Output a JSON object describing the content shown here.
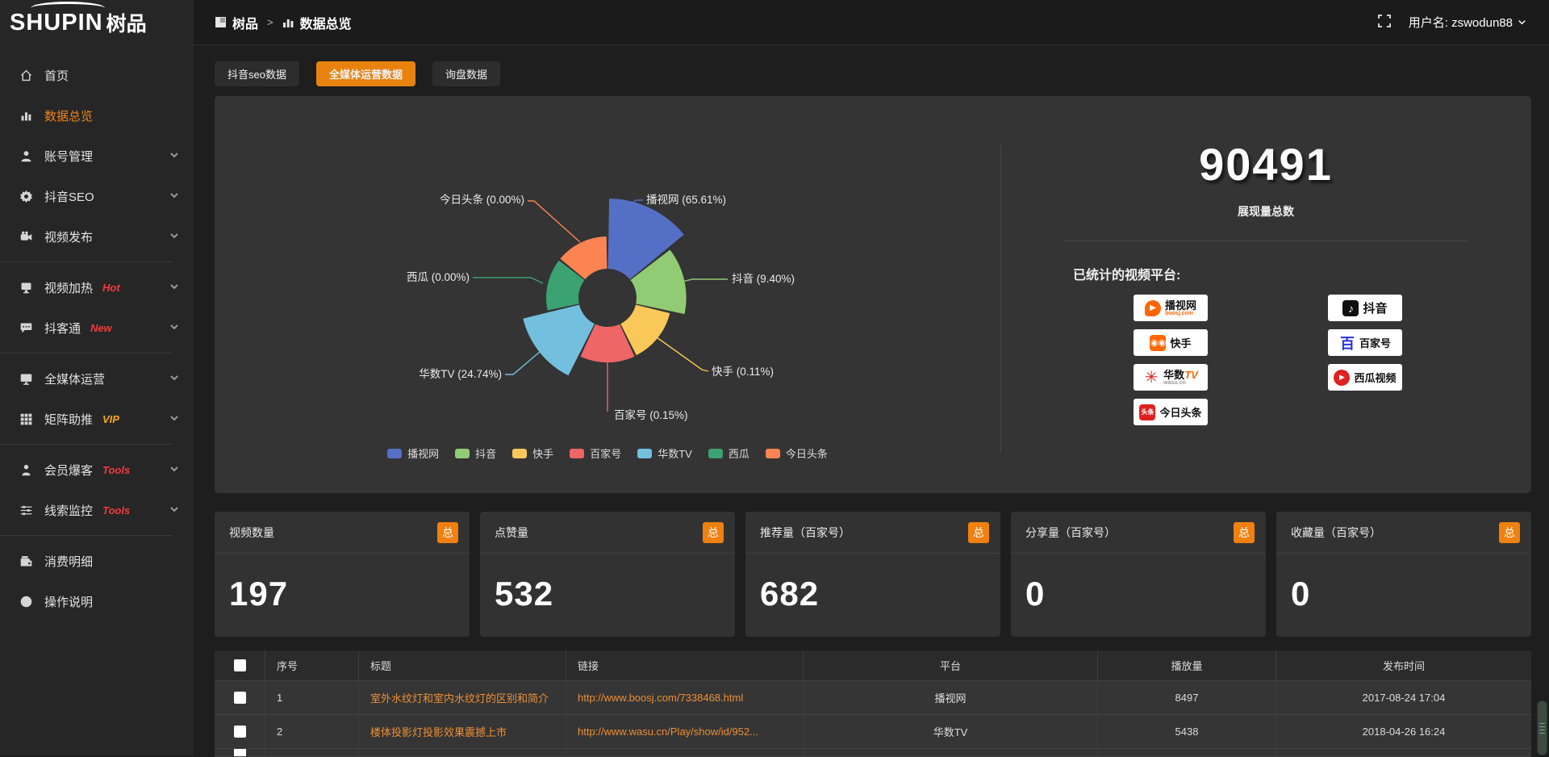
{
  "header": {
    "logo_en": "SHUPIN",
    "logo_cn": "树品",
    "breadcrumb": {
      "root": "树品",
      "sep": ">",
      "current": "数据总览"
    },
    "user_label": "用户名: zswodun88"
  },
  "sidebar": {
    "items": [
      {
        "label": "首页",
        "badge": "",
        "expandable": false
      },
      {
        "label": "数据总览",
        "badge": "",
        "expandable": false,
        "active": true
      },
      {
        "label": "账号管理",
        "badge": "",
        "expandable": true
      },
      {
        "label": "抖音SEO",
        "badge": "",
        "expandable": true
      },
      {
        "label": "视频发布",
        "badge": "",
        "expandable": true
      },
      {
        "label": "视频加热",
        "badge": "Hot",
        "expandable": true
      },
      {
        "label": "抖客通",
        "badge": "New",
        "expandable": true
      },
      {
        "label": "全媒体运营",
        "badge": "",
        "expandable": true
      },
      {
        "label": "矩阵助推",
        "badge": "VIP",
        "expandable": true
      },
      {
        "label": "会员爆客",
        "badge": "Tools",
        "expandable": true
      },
      {
        "label": "线索监控",
        "badge": "Tools",
        "expandable": true
      },
      {
        "label": "消费明细",
        "badge": "",
        "expandable": false
      },
      {
        "label": "操作说明",
        "badge": "",
        "expandable": false
      }
    ]
  },
  "tabs": [
    {
      "label": "抖音seo数据",
      "active": false
    },
    {
      "label": "全媒体运营数据",
      "active": true
    },
    {
      "label": "询盘数据",
      "active": false
    }
  ],
  "chart_data": {
    "type": "pie",
    "subtype": "nightingale-rose-donut",
    "title": "",
    "legend_position": "bottom",
    "series": [
      {
        "name": "播视网",
        "value": 65.61,
        "label": "播视网 (65.61%)"
      },
      {
        "name": "抖音",
        "value": 9.4,
        "label": "抖音 (9.40%)"
      },
      {
        "name": "快手",
        "value": 0.11,
        "label": "快手 (0.11%)"
      },
      {
        "name": "百家号",
        "value": 0.15,
        "label": "百家号 (0.15%)"
      },
      {
        "name": "华数TV",
        "value": 24.74,
        "label": "华数TV (24.74%)"
      },
      {
        "name": "西瓜",
        "value": 0.0,
        "label": "西瓜 (0.00%)"
      },
      {
        "name": "今日头条",
        "value": 0.0,
        "label": "今日头条 (0.00%)"
      }
    ],
    "colors": [
      "#5470c6",
      "#91cc75",
      "#fac858",
      "#ee6666",
      "#73c0de",
      "#3ba272",
      "#fc8452"
    ],
    "unit": "percent"
  },
  "summary": {
    "total_value": "90491",
    "total_label": "展现量总数",
    "platforms_title": "已统计的视频平台:",
    "platforms_left": [
      {
        "name": "播视网",
        "sub": "boosj.com",
        "icon_text": "▶"
      },
      {
        "name": "快手",
        "sub": "",
        "icon_text": "㖃"
      },
      {
        "name": "华数",
        "name2": "TV",
        "sub": "wasu.cn",
        "icon_text": "✳"
      },
      {
        "name": "今日头条",
        "sub": "",
        "icon_text": "头条"
      }
    ],
    "platforms_right": [
      {
        "name": "抖音",
        "sub": "",
        "icon_text": "♪"
      },
      {
        "name": "百家号",
        "sub": "",
        "icon_text": "百"
      },
      {
        "name": "西瓜视频",
        "sub": "",
        "icon_text": "▶"
      }
    ]
  },
  "cards": [
    {
      "title": "视频数量",
      "badge": "总",
      "value": "197"
    },
    {
      "title": "点赞量",
      "badge": "总",
      "value": "532"
    },
    {
      "title": "推荐量（百家号）",
      "badge": "总",
      "value": "682"
    },
    {
      "title": "分享量（百家号）",
      "badge": "总",
      "value": "0"
    },
    {
      "title": "收藏量（百家号）",
      "badge": "总",
      "value": "0"
    }
  ],
  "table": {
    "headers": [
      "序号",
      "标题",
      "链接",
      "平台",
      "播放量",
      "发布时间"
    ],
    "rows": [
      {
        "idx": "1",
        "title": "室外水纹灯和室内水纹灯的区别和简介",
        "link": "http://www.boosj.com/7338468.html",
        "platform": "播视网",
        "plays": "8497",
        "date": "2017-08-24 17:04"
      },
      {
        "idx": "2",
        "title": "楼体投影灯投影效果震撼上市",
        "link": "http://www.wasu.cn/Play/show/id/952...",
        "platform": "华数TV",
        "plays": "5438",
        "date": "2018-04-26 16:24"
      }
    ]
  }
}
